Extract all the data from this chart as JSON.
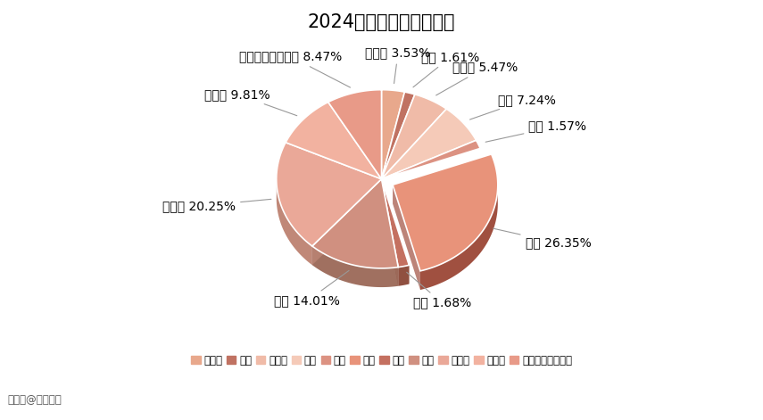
{
  "title": "2024各专业大类人数占比",
  "labels": [
    "经济学",
    "法学",
    "教育学",
    "文学",
    "理学",
    "工学",
    "农学",
    "医学",
    "管理学",
    "艺术学",
    "本科层次职业学校"
  ],
  "values": [
    3.53,
    1.61,
    5.47,
    7.24,
    1.57,
    26.35,
    1.68,
    14.01,
    20.25,
    9.81,
    8.47
  ],
  "face_colors": [
    "#E8A88C",
    "#C07262",
    "#F0BBA8",
    "#F5CAB8",
    "#DC9282",
    "#E8937A",
    "#C47060",
    "#D09080",
    "#EAA898",
    "#F2B2A0",
    "#E89A88"
  ],
  "side_colors": [
    "#C08868",
    "#904040",
    "#C09080",
    "#C89878",
    "#B07060",
    "#A05040",
    "#905040",
    "#A07060",
    "#C08878",
    "#C89080",
    "#C07860"
  ],
  "explode_index": 5,
  "explode_amount": 0.12,
  "startangle": 90,
  "background_color": "#ffffff",
  "title_fontsize": 15,
  "label_fontsize": 10,
  "legend_fontsize": 8.5,
  "depth": 0.18,
  "watermark": "搜狐号@阿库升本"
}
